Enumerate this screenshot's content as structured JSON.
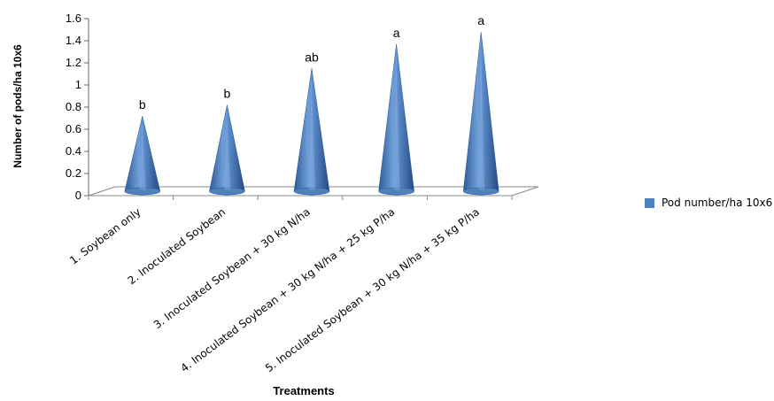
{
  "chart_data": {
    "type": "bar",
    "bar_shape": "cone",
    "categories": [
      "1. Soybean only",
      "2. Inoculated Soybean",
      "3. Inoculated Soybean + 30 kg N/ha",
      "4. Inoculated Soybean + 30 kg N/ha + 25 kg P/ha",
      "5. Inoculated Soybean + 30 kg N/ha + 35 kg P/ha"
    ],
    "series": [
      {
        "name": "Pod number/ha 10x6",
        "values": [
          0.72,
          0.82,
          1.15,
          1.37,
          1.48
        ]
      }
    ],
    "significance_labels": [
      "b",
      "b",
      "ab",
      "a",
      "a"
    ],
    "xlabel": "Treatments",
    "ylabel": "Number of pods/ha 10x6",
    "ylim": [
      0,
      1.6
    ],
    "yticks": [
      0,
      0.2,
      0.4,
      0.6,
      0.8,
      1,
      1.2,
      1.4,
      1.6
    ],
    "ytick_labels": [
      "0",
      "0.2",
      "0.4",
      "0.6",
      "0.8",
      "1",
      "1.2",
      "1.4",
      "1.6"
    ],
    "grid": false,
    "legend_position": "right",
    "colors": {
      "bar": "#4f81bd",
      "bar_dark": "#2f5a93",
      "bar_light": "#9dbde6"
    }
  }
}
